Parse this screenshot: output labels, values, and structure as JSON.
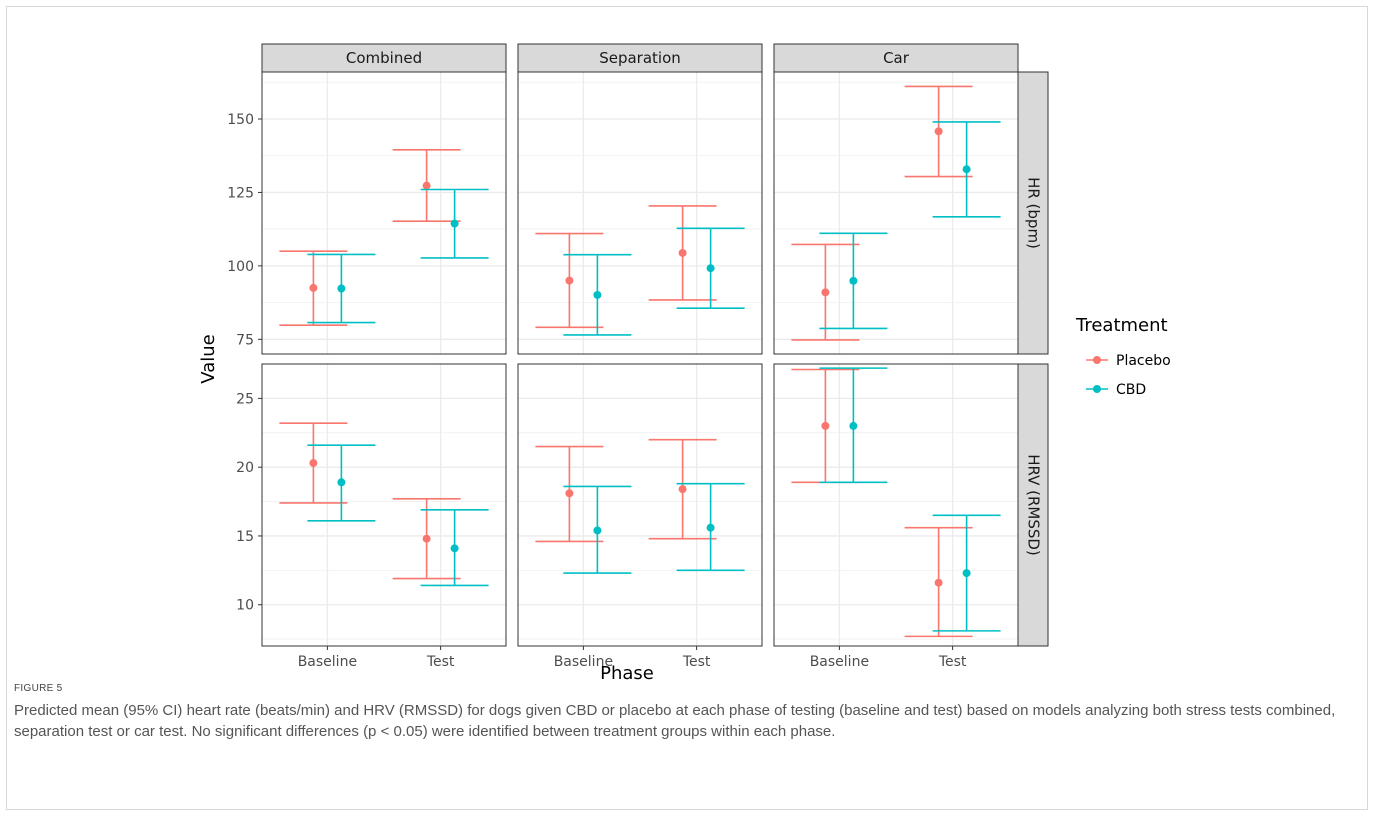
{
  "figure": {
    "label": "FIGURE 5",
    "caption": "Predicted mean (95% CI) heart rate (beats/min) and HRV (RMSSD) for dogs given CBD or placebo at each phase of testing (baseline and test) based on models analyzing both stress tests combined, separation test or car test. No significant differences (p < 0.05) were identified between treatment groups within each phase."
  },
  "chart_data": {
    "type": "scatter",
    "subtype": "point-errorbar faceted grid",
    "xlabel": "Phase",
    "ylabel": "Value",
    "categories": [
      "Baseline",
      "Test"
    ],
    "columns": [
      "Combined",
      "Separation",
      "Car"
    ],
    "rows": [
      {
        "name": "HR (bpm)",
        "ylim": [
          70,
          166
        ],
        "ticks": [
          75,
          100,
          125,
          150
        ]
      },
      {
        "name": "HRV (RMSSD)",
        "ylim": [
          7,
          27.5
        ],
        "ticks": [
          10,
          15,
          20,
          25
        ]
      }
    ],
    "legend": {
      "title": "Treatment",
      "position": "right"
    },
    "grid": true,
    "series": [
      {
        "name": "Placebo",
        "color": "#F8766D"
      },
      {
        "name": "CBD",
        "color": "#00BFC4"
      }
    ],
    "data": [
      {
        "row": "HR (bpm)",
        "col": "Combined",
        "phase": "Baseline",
        "series": "Placebo",
        "mean": 92.5,
        "lower": 79.8,
        "upper": 105.0
      },
      {
        "row": "HR (bpm)",
        "col": "Combined",
        "phase": "Baseline",
        "series": "CBD",
        "mean": 92.3,
        "lower": 80.7,
        "upper": 103.9
      },
      {
        "row": "HR (bpm)",
        "col": "Combined",
        "phase": "Test",
        "series": "Placebo",
        "mean": 127.3,
        "lower": 115.2,
        "upper": 139.5
      },
      {
        "row": "HR (bpm)",
        "col": "Combined",
        "phase": "Test",
        "series": "CBD",
        "mean": 114.4,
        "lower": 102.7,
        "upper": 126.0
      },
      {
        "row": "HR (bpm)",
        "col": "Separation",
        "phase": "Baseline",
        "series": "Placebo",
        "mean": 95.0,
        "lower": 79.1,
        "upper": 111.0
      },
      {
        "row": "HR (bpm)",
        "col": "Separation",
        "phase": "Baseline",
        "series": "CBD",
        "mean": 90.1,
        "lower": 76.5,
        "upper": 103.8
      },
      {
        "row": "HR (bpm)",
        "col": "Separation",
        "phase": "Test",
        "series": "Placebo",
        "mean": 104.4,
        "lower": 88.4,
        "upper": 120.4
      },
      {
        "row": "HR (bpm)",
        "col": "Separation",
        "phase": "Test",
        "series": "CBD",
        "mean": 99.2,
        "lower": 85.6,
        "upper": 112.8
      },
      {
        "row": "HR (bpm)",
        "col": "Car",
        "phase": "Baseline",
        "series": "Placebo",
        "mean": 91.0,
        "lower": 74.8,
        "upper": 107.3
      },
      {
        "row": "HR (bpm)",
        "col": "Car",
        "phase": "Baseline",
        "series": "CBD",
        "mean": 94.9,
        "lower": 78.7,
        "upper": 111.1
      },
      {
        "row": "HR (bpm)",
        "col": "Car",
        "phase": "Test",
        "series": "Placebo",
        "mean": 145.8,
        "lower": 130.4,
        "upper": 161.1
      },
      {
        "row": "HR (bpm)",
        "col": "Car",
        "phase": "Test",
        "series": "CBD",
        "mean": 132.9,
        "lower": 116.7,
        "upper": 149.0
      },
      {
        "row": "HRV (RMSSD)",
        "col": "Combined",
        "phase": "Baseline",
        "series": "Placebo",
        "mean": 20.3,
        "lower": 17.4,
        "upper": 23.2
      },
      {
        "row": "HRV (RMSSD)",
        "col": "Combined",
        "phase": "Baseline",
        "series": "CBD",
        "mean": 18.9,
        "lower": 16.1,
        "upper": 21.6
      },
      {
        "row": "HRV (RMSSD)",
        "col": "Combined",
        "phase": "Test",
        "series": "Placebo",
        "mean": 14.8,
        "lower": 11.9,
        "upper": 17.7
      },
      {
        "row": "HRV (RMSSD)",
        "col": "Combined",
        "phase": "Test",
        "series": "CBD",
        "mean": 14.1,
        "lower": 11.4,
        "upper": 16.9
      },
      {
        "row": "HRV (RMSSD)",
        "col": "Separation",
        "phase": "Baseline",
        "series": "Placebo",
        "mean": 18.1,
        "lower": 14.6,
        "upper": 21.5
      },
      {
        "row": "HRV (RMSSD)",
        "col": "Separation",
        "phase": "Baseline",
        "series": "CBD",
        "mean": 15.4,
        "lower": 12.3,
        "upper": 18.6
      },
      {
        "row": "HRV (RMSSD)",
        "col": "Separation",
        "phase": "Test",
        "series": "Placebo",
        "mean": 18.4,
        "lower": 14.8,
        "upper": 22.0
      },
      {
        "row": "HRV (RMSSD)",
        "col": "Separation",
        "phase": "Test",
        "series": "CBD",
        "mean": 15.6,
        "lower": 12.5,
        "upper": 18.8
      },
      {
        "row": "HRV (RMSSD)",
        "col": "Car",
        "phase": "Baseline",
        "series": "Placebo",
        "mean": 23.0,
        "lower": 18.9,
        "upper": 27.1
      },
      {
        "row": "HRV (RMSSD)",
        "col": "Car",
        "phase": "Baseline",
        "series": "CBD",
        "mean": 23.0,
        "lower": 18.9,
        "upper": 27.2
      },
      {
        "row": "HRV (RMSSD)",
        "col": "Car",
        "phase": "Test",
        "series": "Placebo",
        "mean": 11.6,
        "lower": 7.7,
        "upper": 15.6
      },
      {
        "row": "HRV (RMSSD)",
        "col": "Car",
        "phase": "Test",
        "series": "CBD",
        "mean": 12.3,
        "lower": 8.1,
        "upper": 16.5
      }
    ]
  }
}
